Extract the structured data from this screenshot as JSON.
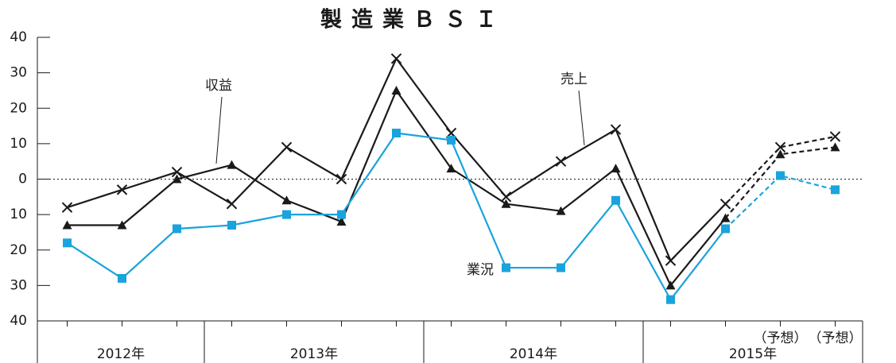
{
  "chart_data": {
    "type": "line",
    "title": "製造業ＢＳＩ",
    "categories": [
      null,
      null,
      null,
      null,
      null,
      null,
      null,
      null,
      null,
      null,
      null,
      null,
      null,
      "（予想）",
      "（予想）"
    ],
    "groups": [
      {
        "label": "2012年",
        "count": 3
      },
      {
        "label": "2013年",
        "count": 4
      },
      {
        "label": "2014年",
        "count": 4
      },
      {
        "label": "2015年",
        "count": 4
      }
    ],
    "dashed_from_index": 12,
    "series": [
      {
        "name": "売上",
        "color": "#1a1a1a",
        "marker": "cross",
        "values": [
          -8,
          -3,
          2,
          -7,
          9,
          0,
          34,
          13,
          -5,
          5,
          14,
          -23,
          -7,
          9,
          12
        ]
      },
      {
        "name": "収益",
        "color": "#1a1a1a",
        "marker": "triangle",
        "values": [
          -13,
          -13,
          0,
          4,
          -6,
          -12,
          25,
          3,
          -7,
          -9,
          3,
          -30,
          -11,
          7,
          9
        ]
      },
      {
        "name": "業況",
        "color": "#1aa3dc",
        "marker": "square",
        "values": [
          -18,
          -28,
          -14,
          -13,
          -10,
          -10,
          13,
          11,
          -25,
          -25,
          -6,
          -34,
          -14,
          1,
          -3
        ]
      }
    ],
    "ylim": [
      -40,
      40
    ],
    "yticks": [
      {
        "value": -40,
        "label": "40"
      },
      {
        "value": -30,
        "label": "30"
      },
      {
        "value": -20,
        "label": "20"
      },
      {
        "value": -10,
        "label": "10"
      },
      0,
      10,
      20,
      30,
      40
    ],
    "zero_line": true
  }
}
